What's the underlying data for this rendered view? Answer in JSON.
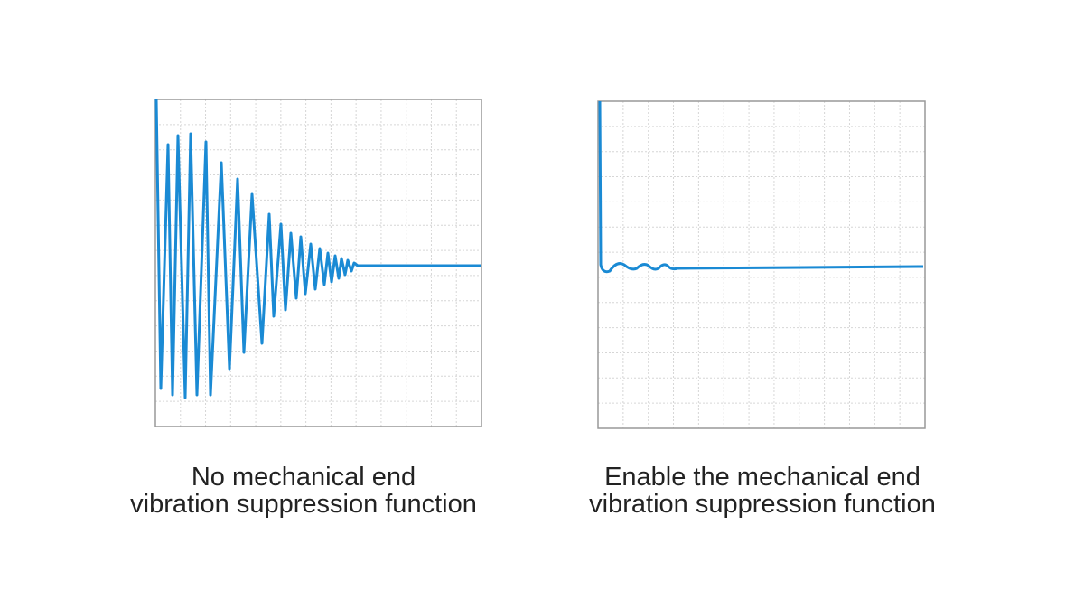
{
  "panels": [
    {
      "caption": [
        "No mechanical end",
        "vibration suppression function"
      ]
    },
    {
      "caption": [
        "Enable the mechanical end",
        "vibration suppression function"
      ]
    }
  ]
}
